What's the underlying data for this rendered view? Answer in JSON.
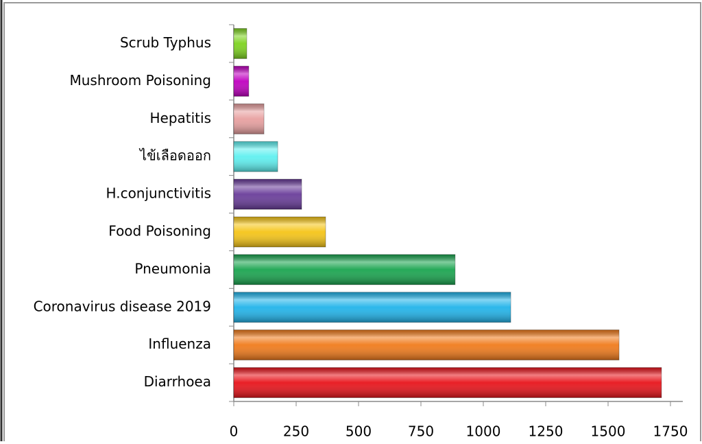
{
  "chart_data": {
    "type": "barh",
    "categories": [
      "Scrub Typhus",
      "Mushroom Poisoning",
      "Hepatitis",
      "ไข้เลือดออก",
      "H.conjunctivitis",
      "Food Poisoning",
      "Pneumonia",
      "Coronavirus disease 2019",
      "Influenza",
      "Diarrhoea"
    ],
    "values": [
      52,
      60,
      121,
      176,
      272,
      368,
      887,
      1110,
      1544,
      1714
    ],
    "colors": [
      "#7ed321",
      "#c000c0",
      "#e8a0a0",
      "#5ff0f0",
      "#6a3d9a",
      "#f5c518",
      "#1ba550",
      "#22b4ea",
      "#f07b1c",
      "#e8141b"
    ],
    "xlim": [
      0,
      1750
    ],
    "xticks": [
      0,
      250,
      500,
      750,
      1000,
      1250,
      1500,
      1750
    ],
    "grid": false
  }
}
